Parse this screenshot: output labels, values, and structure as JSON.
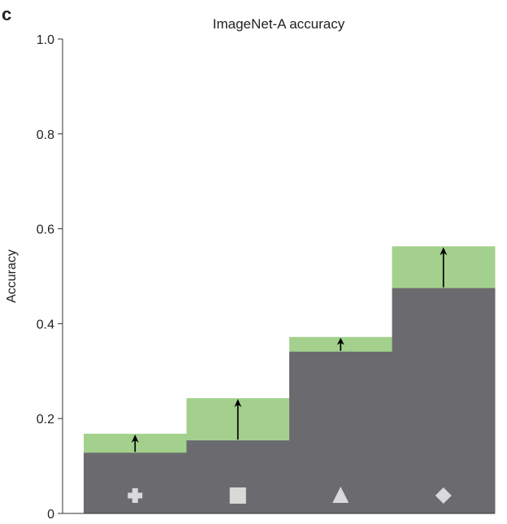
{
  "panel_label": "c",
  "chart_data": {
    "type": "bar",
    "title": "ImageNet-A accuracy",
    "xlabel": "",
    "ylabel": "Accuracy",
    "ylim": [
      0,
      1.0
    ],
    "yticks": [
      "0",
      "0.2",
      "0.4",
      "0.6",
      "0.8",
      "1.0"
    ],
    "grid": false,
    "categories": [
      "plus",
      "square",
      "triangle",
      "diamond"
    ],
    "category_markers": [
      "plus-icon",
      "square-icon",
      "triangle-icon",
      "diamond-icon"
    ],
    "series": [
      {
        "values": [
          0.128,
          0.154,
          0.341,
          0.475
        ]
      },
      {
        "values": [
          0.168,
          0.243,
          0.372,
          0.563
        ]
      }
    ],
    "colors": {
      "base": "#6b6b6f",
      "improvement": "#a3d18d",
      "marker": "#d9d9d9",
      "axis": "#333333",
      "arrow": "#000000"
    }
  }
}
